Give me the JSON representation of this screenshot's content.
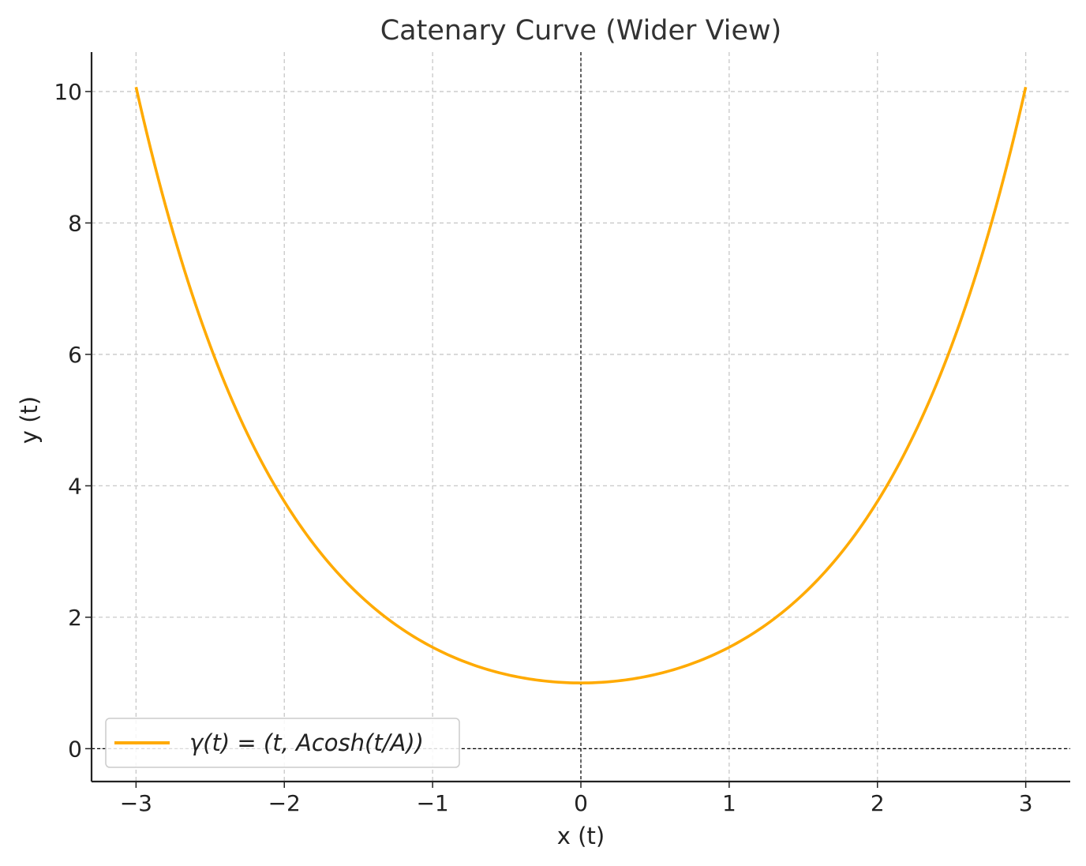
{
  "chart_data": {
    "type": "line",
    "title": "Catenary Curve (Wider View)",
    "xlabel": "x (t)",
    "ylabel": "y (t)",
    "xlim": [
      -3.3,
      3.3
    ],
    "ylim": [
      -0.5,
      10.6
    ],
    "xticks": [
      -3,
      -2,
      -1,
      0,
      1,
      2,
      3
    ],
    "xtick_labels": [
      "−3",
      "−2",
      "−1",
      "0",
      "1",
      "2",
      "3"
    ],
    "yticks": [
      0,
      2,
      4,
      6,
      8,
      10
    ],
    "ytick_labels": [
      "0",
      "2",
      "4",
      "6",
      "8",
      "10"
    ],
    "grid": true,
    "legend_position": "lower-left",
    "reference_lines": {
      "x": 0,
      "y": 0
    },
    "series": [
      {
        "name": "γ(t) = (t, Acosh(t/A))",
        "color": "#FFAA00",
        "x": [
          -3.0,
          -2.75,
          -2.5,
          -2.25,
          -2.0,
          -1.75,
          -1.5,
          -1.25,
          -1.0,
          -0.75,
          -0.5,
          -0.25,
          0.0,
          0.25,
          0.5,
          0.75,
          1.0,
          1.25,
          1.5,
          1.75,
          2.0,
          2.25,
          2.5,
          2.75,
          3.0
        ],
        "y": [
          10.07,
          7.85,
          6.13,
          4.8,
          3.76,
          2.96,
          2.35,
          1.89,
          1.54,
          1.29,
          1.13,
          1.03,
          1.0,
          1.03,
          1.13,
          1.29,
          1.54,
          1.89,
          2.35,
          2.96,
          3.76,
          4.8,
          6.13,
          7.85,
          10.07
        ]
      }
    ]
  }
}
